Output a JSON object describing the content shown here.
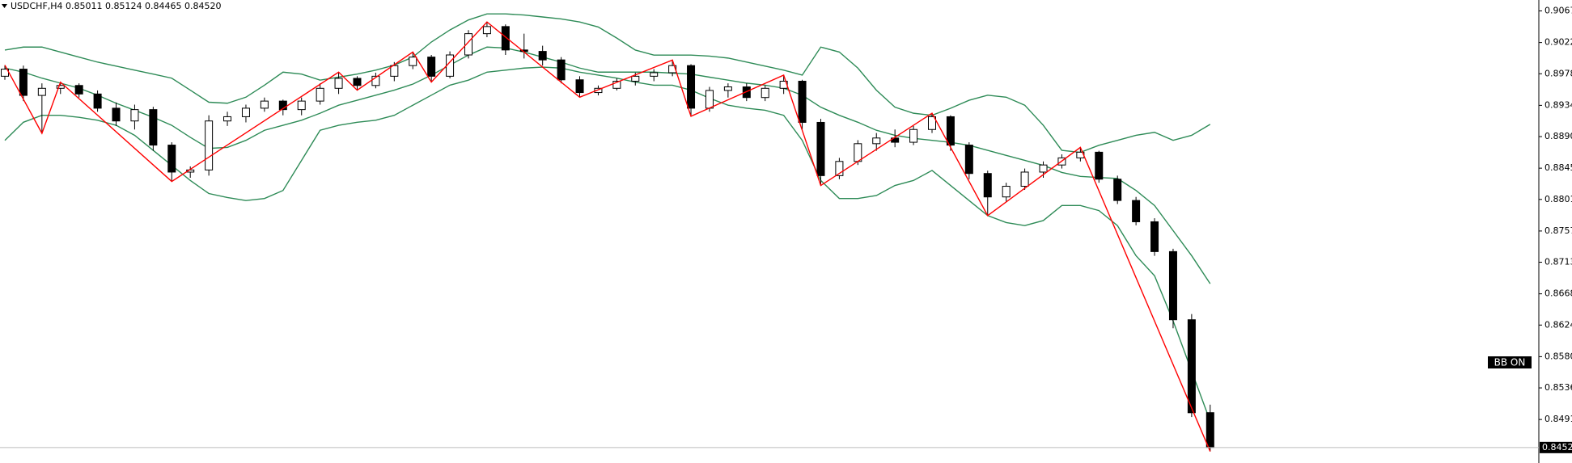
{
  "chart_data": {
    "type": "candlestick",
    "title": "USDCHF,H4  0.85011 0.85124 0.84465 0.84520",
    "annotation": "BB ON",
    "up_color": "#ffffff",
    "down_color": "#000000",
    "open": [
      0.8975,
      0.8985,
      0.8948,
      0.8958,
      0.8962,
      0.895,
      0.893,
      0.8912,
      0.8928,
      0.8878,
      0.884,
      0.8843,
      0.8912,
      0.8918,
      0.893,
      0.894,
      0.8928,
      0.894,
      0.8958,
      0.8972,
      0.8962,
      0.8975,
      0.899,
      0.9002,
      0.8975,
      0.9005,
      0.9035,
      0.9045,
      0.9012,
      0.901,
      0.8998,
      0.897,
      0.8952,
      0.8958,
      0.8968,
      0.8975,
      0.898,
      0.899,
      0.893,
      0.8955,
      0.896,
      0.8945,
      0.8958,
      0.8968,
      0.891,
      0.8835,
      0.8855,
      0.888,
      0.8888,
      0.8882,
      0.89,
      0.8918,
      0.8878,
      0.8838,
      0.8805,
      0.882,
      0.884,
      0.885,
      0.886,
      0.8868,
      0.883,
      0.88,
      0.877,
      0.8728,
      0.8632,
      0.85011
    ],
    "high": [
      0.89907,
      0.899,
      0.8965,
      0.89667,
      0.8965,
      0.8955,
      0.8938,
      0.8935,
      0.8932,
      0.8882,
      0.8848,
      0.892,
      0.8925,
      0.8935,
      0.8945,
      0.8942,
      0.8945,
      0.8965,
      0.89808,
      0.8975,
      0.898,
      0.8995,
      0.90091,
      0.9005,
      0.901,
      0.904,
      0.90515,
      0.9048,
      0.9035,
      0.9018,
      0.9002,
      0.8975,
      0.8962,
      0.8972,
      0.898,
      0.8985,
      0.89978,
      0.8992,
      0.896,
      0.8965,
      0.8965,
      0.8962,
      0.89766,
      0.897,
      0.8915,
      0.886,
      0.8885,
      0.8895,
      0.89,
      0.8905,
      0.89229,
      0.892,
      0.8882,
      0.8842,
      0.8825,
      0.8845,
      0.8855,
      0.8865,
      0.88748,
      0.887,
      0.8835,
      0.8805,
      0.8775,
      0.8732,
      0.864,
      0.85124
    ],
    "low": [
      0.897,
      0.894,
      0.88946,
      0.895,
      0.8945,
      0.8925,
      0.8905,
      0.89,
      0.887,
      0.88268,
      0.8832,
      0.8835,
      0.8905,
      0.891,
      0.8925,
      0.892,
      0.892,
      0.8935,
      0.895,
      0.89554,
      0.8958,
      0.8968,
      0.8985,
      0.89667,
      0.8972,
      0.9,
      0.903,
      0.9005,
      0.9,
      0.899,
      0.8965,
      0.89455,
      0.8948,
      0.8955,
      0.8962,
      0.8968,
      0.8975,
      0.89186,
      0.8925,
      0.8945,
      0.894,
      0.894,
      0.895,
      0.89,
      0.88211,
      0.883,
      0.885,
      0.887,
      0.8875,
      0.8878,
      0.8895,
      0.887,
      0.883,
      0.87787,
      0.8798,
      0.8815,
      0.8832,
      0.8845,
      0.8855,
      0.8825,
      0.8795,
      0.8765,
      0.8722,
      0.862,
      0.8495,
      0.84465
    ],
    "close": [
      0.8985,
      0.8948,
      0.8958,
      0.8962,
      0.895,
      0.893,
      0.8912,
      0.8928,
      0.8878,
      0.884,
      0.8843,
      0.8912,
      0.8918,
      0.893,
      0.894,
      0.8928,
      0.894,
      0.8958,
      0.8972,
      0.8962,
      0.8975,
      0.899,
      0.9002,
      0.8975,
      0.9005,
      0.9035,
      0.9045,
      0.9012,
      0.901,
      0.8998,
      0.897,
      0.8952,
      0.8958,
      0.8968,
      0.8975,
      0.898,
      0.899,
      0.893,
      0.8955,
      0.896,
      0.8945,
      0.8958,
      0.8968,
      0.891,
      0.8835,
      0.8855,
      0.888,
      0.8888,
      0.8882,
      0.89,
      0.8918,
      0.8878,
      0.8838,
      0.8805,
      0.882,
      0.884,
      0.885,
      0.886,
      0.8868,
      0.883,
      0.88,
      0.877,
      0.8728,
      0.8632,
      0.8501,
      0.8452
    ],
    "bands": {
      "color": "#2e8b57",
      "upper": [
        0.90119,
        0.90161,
        0.90161,
        0.90091,
        0.9002,
        0.89949,
        0.89893,
        0.89836,
        0.8978,
        0.89723,
        0.89554,
        0.89384,
        0.8937,
        0.89455,
        0.89624,
        0.89808,
        0.8978,
        0.89695,
        0.89737,
        0.8978,
        0.89836,
        0.89907,
        0.9002,
        0.90232,
        0.90402,
        0.90543,
        0.90628,
        0.90628,
        0.90613,
        0.90585,
        0.90557,
        0.90515,
        0.90444,
        0.90288,
        0.90119,
        0.90048,
        0.90048,
        0.90048,
        0.90034,
        0.90006,
        0.89949,
        0.89893,
        0.89836,
        0.89766,
        0.90161,
        0.90091,
        0.89865,
        0.89554,
        0.89314,
        0.89229,
        0.892,
        0.89299,
        0.89412,
        0.89483,
        0.89455,
        0.89342,
        0.89059,
        0.88706,
        0.88678,
        0.88777,
        0.88847,
        0.88918,
        0.8896,
        0.88847,
        0.88918,
        0.89073
      ],
      "middle": [
        0.89865,
        0.89808,
        0.89723,
        0.89653,
        0.89582,
        0.89483,
        0.8937,
        0.89271,
        0.89172,
        0.89059,
        0.8889,
        0.88734,
        0.88748,
        0.88847,
        0.88989,
        0.89059,
        0.8913,
        0.89229,
        0.89342,
        0.89412,
        0.89483,
        0.89554,
        0.89639,
        0.89766,
        0.89907,
        0.90048,
        0.90161,
        0.90147,
        0.90091,
        0.9002,
        0.89949,
        0.89865,
        0.89808,
        0.89808,
        0.89808,
        0.89808,
        0.89794,
        0.8978,
        0.89737,
        0.89695,
        0.89653,
        0.89624,
        0.89582,
        0.89483,
        0.89314,
        0.892,
        0.89102,
        0.88989,
        0.88918,
        0.88875,
        0.88847,
        0.88819,
        0.88777,
        0.88706,
        0.88635,
        0.88565,
        0.88494,
        0.88395,
        0.88339,
        0.88324,
        0.8831,
        0.88141,
        0.87929,
        0.87576,
        0.87222,
        0.86827
      ],
      "lower": [
        0.88847,
        0.89102,
        0.892,
        0.892,
        0.89172,
        0.8913,
        0.89059,
        0.88918,
        0.88706,
        0.88494,
        0.88282,
        0.88098,
        0.88042,
        0.87999,
        0.88028,
        0.88141,
        0.88565,
        0.88989,
        0.89059,
        0.89102,
        0.8913,
        0.892,
        0.89342,
        0.89483,
        0.89624,
        0.89695,
        0.89808,
        0.89836,
        0.89865,
        0.89879,
        0.89865,
        0.89808,
        0.89766,
        0.89723,
        0.89667,
        0.89624,
        0.89624,
        0.89554,
        0.89441,
        0.89342,
        0.89299,
        0.89271,
        0.892,
        0.88847,
        0.88282,
        0.88028,
        0.88028,
        0.8807,
        0.88211,
        0.88282,
        0.88423,
        0.88211,
        0.87999,
        0.87787,
        0.87689,
        0.87646,
        0.87717,
        0.87929,
        0.87929,
        0.87858,
        0.87646,
        0.87222,
        0.8694,
        0.86304,
        0.85597,
        0.84891
      ]
    },
    "zigzag": {
      "color": "#ff0000",
      "x": [
        0,
        2,
        3,
        9,
        18,
        19,
        22,
        23,
        26,
        31,
        36,
        37,
        42,
        44,
        50,
        53,
        58,
        65
      ],
      "values": [
        0.89907,
        0.88946,
        0.89667,
        0.88268,
        0.89808,
        0.89554,
        0.90091,
        0.89667,
        0.90515,
        0.89455,
        0.89978,
        0.89186,
        0.89766,
        0.88211,
        0.89229,
        0.87787,
        0.88748,
        0.84465
      ]
    },
    "last_price": {
      "value": 0.8452,
      "label": "0.84520"
    },
    "ylim": [
      0.8445,
      0.90824
    ],
    "yticks": [
      {
        "value": 0.9067,
        "label": "0.90670"
      },
      0.90225,
      0.89785,
      {
        "value": 0.8934,
        "label": "0.89340"
      },
      {
        "value": 0.889,
        "label": "0.88900"
      },
      0.88455,
      0.88015,
      {
        "value": 0.8757,
        "label": "0.87570"
      },
      {
        "value": 0.8713,
        "label": "0.87130"
      },
      0.86685,
      0.86245,
      {
        "value": 0.858,
        "label": "0.85800"
      },
      {
        "value": 0.8536,
        "label": "0.85360"
      },
      0.84915
    ],
    "grid": false
  }
}
